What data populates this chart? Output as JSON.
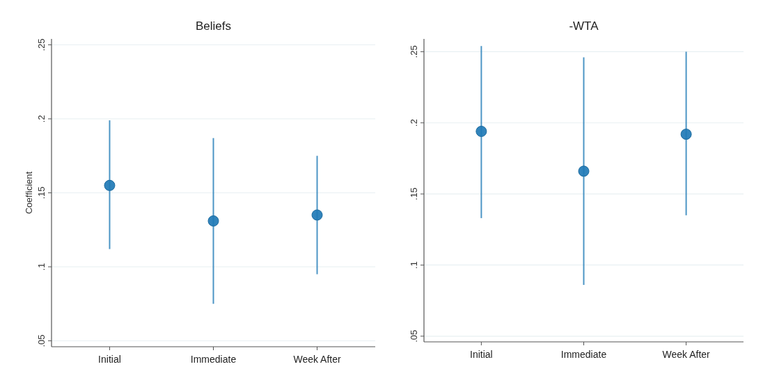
{
  "chart_data": [
    {
      "type": "scatter",
      "title": "Beliefs",
      "ylabel": "Coefficient",
      "categories": [
        "Initial",
        "Immediate",
        "Week After"
      ],
      "series": [
        {
          "color": "#1f7ab6",
          "values": [
            0.155,
            0.131,
            0.135
          ],
          "errors": [
            [
              0.112,
              0.199
            ],
            [
              0.075,
              0.187
            ],
            [
              0.095,
              0.175
            ]
          ]
        }
      ],
      "ylim": [
        0.046,
        0.254
      ],
      "yticks": [
        {
          "value": 0.05,
          "label": ".05"
        },
        {
          "value": 0.1,
          "label": ".1"
        },
        {
          "value": 0.15,
          "label": ".15"
        },
        {
          "value": 0.2,
          "label": ".2"
        },
        {
          "value": 0.25,
          "label": ".25"
        }
      ],
      "grid": "y",
      "marker": "circle"
    },
    {
      "type": "scatter",
      "title": "-WTA",
      "categories": [
        "Initial",
        "Immediate",
        "Week After"
      ],
      "series": [
        {
          "color": "#1f7ab6",
          "values": [
            0.194,
            0.166,
            0.192
          ],
          "errors": [
            [
              0.133,
              0.254
            ],
            [
              0.086,
              0.246
            ],
            [
              0.135,
              0.25
            ]
          ]
        }
      ],
      "ylim": [
        0.046,
        0.259
      ],
      "yticks": [
        {
          "value": 0.05,
          "label": ".05"
        },
        {
          "value": 0.1,
          "label": ".1"
        },
        {
          "value": 0.15,
          "label": ".15"
        },
        {
          "value": 0.2,
          "label": ".2"
        },
        {
          "value": 0.25,
          "label": ".25"
        }
      ],
      "grid": "y",
      "marker": "circle"
    }
  ]
}
